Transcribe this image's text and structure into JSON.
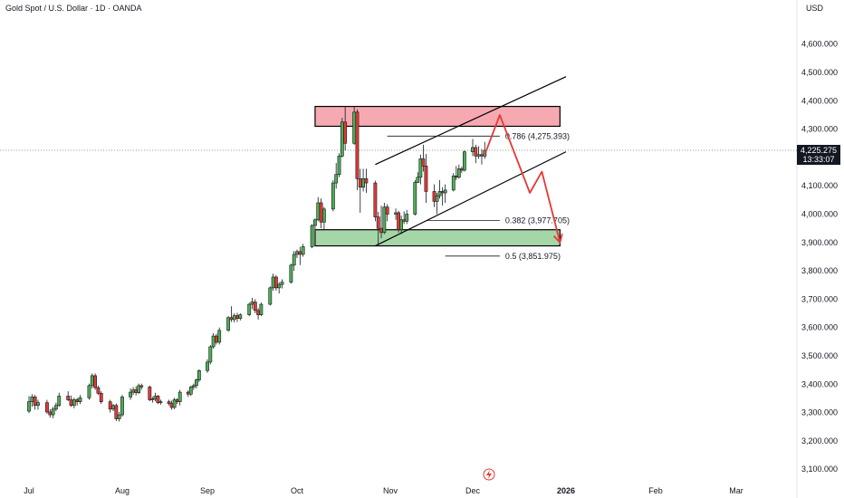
{
  "header": {
    "title": "Gold Spot / U.S. Dollar · 1D · OANDA",
    "currency": "USD"
  },
  "price_badge": {
    "price": "4,225.275",
    "countdown": "13:33:07"
  },
  "colors": {
    "up": "#4caf50",
    "down": "#e53935",
    "supply_zone": "#f7a9b1",
    "demand_zone": "#a5d6a7",
    "projection": "#e53935",
    "channel": "#000000"
  },
  "chart_data": {
    "type": "candlestick",
    "ylim": [
      3050,
      4680
    ],
    "y_ticks": [
      "4,600.000",
      "4,500.000",
      "4,400.000",
      "4,300.000",
      "4,200.000",
      "4,100.000",
      "4,000.000",
      "3,900.000",
      "3,800.000",
      "3,700.000",
      "3,600.000",
      "3,500.000",
      "3,400.000",
      "3,300.000",
      "3,200.000",
      "3,100.000"
    ],
    "y_tick_values": [
      4600,
      4500,
      4400,
      4300,
      4200,
      4100,
      4000,
      3900,
      3800,
      3700,
      3600,
      3500,
      3400,
      3300,
      3200,
      3100
    ],
    "x_ticks": [
      {
        "label": "Jul",
        "date": "2025-07-01"
      },
      {
        "label": "Aug",
        "date": "2025-08-01"
      },
      {
        "label": "Sep",
        "date": "2025-09-01"
      },
      {
        "label": "Oct",
        "date": "2025-10-01"
      },
      {
        "label": "Nov",
        "date": "2025-11-01"
      },
      {
        "label": "Dec",
        "date": "2025-12-01"
      },
      {
        "label": "2026",
        "date": "2026-01-01"
      },
      {
        "label": "Feb",
        "date": "2026-02-01"
      },
      {
        "label": "Mar",
        "date": "2026-03-01"
      }
    ],
    "candles": [
      [
        "2025-07-01",
        3305,
        3358,
        3298,
        3338
      ],
      [
        "2025-07-02",
        3338,
        3365,
        3320,
        3355
      ],
      [
        "2025-07-03",
        3355,
        3362,
        3310,
        3325
      ],
      [
        "2025-07-04",
        3325,
        3345,
        3310,
        3335
      ],
      [
        "2025-07-07",
        3335,
        3345,
        3295,
        3302
      ],
      [
        "2025-07-08",
        3302,
        3312,
        3282,
        3292
      ],
      [
        "2025-07-09",
        3292,
        3320,
        3280,
        3312
      ],
      [
        "2025-07-10",
        3312,
        3335,
        3305,
        3325
      ],
      [
        "2025-07-11",
        3325,
        3370,
        3320,
        3358
      ],
      [
        "2025-07-14",
        3358,
        3375,
        3340,
        3345
      ],
      [
        "2025-07-15",
        3345,
        3360,
        3320,
        3325
      ],
      [
        "2025-07-16",
        3325,
        3352,
        3315,
        3345
      ],
      [
        "2025-07-17",
        3345,
        3352,
        3325,
        3338
      ],
      [
        "2025-07-18",
        3338,
        3362,
        3330,
        3352
      ],
      [
        "2025-07-21",
        3352,
        3402,
        3345,
        3395
      ],
      [
        "2025-07-22",
        3395,
        3438,
        3385,
        3430
      ],
      [
        "2025-07-23",
        3430,
        3438,
        3380,
        3388
      ],
      [
        "2025-07-24",
        3388,
        3395,
        3362,
        3368
      ],
      [
        "2025-07-25",
        3368,
        3375,
        3330,
        3338
      ],
      [
        "2025-07-28",
        3338,
        3345,
        3300,
        3312
      ],
      [
        "2025-07-29",
        3312,
        3330,
        3305,
        3325
      ],
      [
        "2025-07-30",
        3325,
        3332,
        3270,
        3278
      ],
      [
        "2025-07-31",
        3278,
        3302,
        3268,
        3292
      ],
      [
        "2025-08-01",
        3292,
        3362,
        3285,
        3355
      ],
      [
        "2025-08-04",
        3355,
        3385,
        3345,
        3372
      ],
      [
        "2025-08-05",
        3372,
        3390,
        3362,
        3380
      ],
      [
        "2025-08-06",
        3380,
        3392,
        3360,
        3370
      ],
      [
        "2025-08-07",
        3370,
        3402,
        3365,
        3395
      ],
      [
        "2025-08-08",
        3395,
        3402,
        3380,
        3390
      ],
      [
        "2025-08-11",
        3390,
        3395,
        3340,
        3345
      ],
      [
        "2025-08-12",
        3345,
        3355,
        3335,
        3348
      ],
      [
        "2025-08-13",
        3348,
        3370,
        3340,
        3358
      ],
      [
        "2025-08-14",
        3358,
        3362,
        3330,
        3335
      ],
      [
        "2025-08-15",
        3335,
        3345,
        3328,
        3338
      ],
      [
        "2025-08-18",
        3338,
        3345,
        3325,
        3332
      ],
      [
        "2025-08-19",
        3332,
        3342,
        3310,
        3318
      ],
      [
        "2025-08-20",
        3318,
        3352,
        3312,
        3345
      ],
      [
        "2025-08-21",
        3345,
        3350,
        3330,
        3338
      ],
      [
        "2025-08-22",
        3338,
        3380,
        3325,
        3372
      ],
      [
        "2025-08-25",
        3372,
        3378,
        3355,
        3365
      ],
      [
        "2025-08-26",
        3365,
        3395,
        3358,
        3390
      ],
      [
        "2025-08-27",
        3390,
        3402,
        3380,
        3395
      ],
      [
        "2025-08-28",
        3395,
        3420,
        3385,
        3415
      ],
      [
        "2025-08-29",
        3415,
        3452,
        3408,
        3448
      ],
      [
        "2025-09-01",
        3448,
        3488,
        3440,
        3478
      ],
      [
        "2025-09-02",
        3478,
        3538,
        3470,
        3532
      ],
      [
        "2025-09-03",
        3532,
        3580,
        3525,
        3570
      ],
      [
        "2025-09-04",
        3570,
        3578,
        3540,
        3548
      ],
      [
        "2025-09-05",
        3548,
        3600,
        3540,
        3590
      ],
      [
        "2025-09-08",
        3590,
        3640,
        3585,
        3635
      ],
      [
        "2025-09-09",
        3635,
        3675,
        3620,
        3628
      ],
      [
        "2025-09-10",
        3628,
        3650,
        3618,
        3642
      ],
      [
        "2025-09-11",
        3642,
        3652,
        3620,
        3632
      ],
      [
        "2025-09-12",
        3632,
        3650,
        3625,
        3645
      ],
      [
        "2025-09-15",
        3645,
        3688,
        3640,
        3682
      ],
      [
        "2025-09-16",
        3682,
        3705,
        3665,
        3690
      ],
      [
        "2025-09-17",
        3690,
        3700,
        3650,
        3660
      ],
      [
        "2025-09-18",
        3660,
        3668,
        3628,
        3645
      ],
      [
        "2025-09-19",
        3645,
        3688,
        3640,
        3682
      ],
      [
        "2025-09-22",
        3682,
        3745,
        3678,
        3740
      ],
      [
        "2025-09-23",
        3740,
        3790,
        3730,
        3778
      ],
      [
        "2025-09-24",
        3778,
        3785,
        3730,
        3740
      ],
      [
        "2025-09-25",
        3740,
        3760,
        3720,
        3752
      ],
      [
        "2025-09-26",
        3752,
        3770,
        3738,
        3760
      ],
      [
        "2025-09-29",
        3760,
        3825,
        3755,
        3820
      ],
      [
        "2025-09-30",
        3820,
        3870,
        3800,
        3858
      ],
      [
        "2025-10-01",
        3858,
        3875,
        3845,
        3868
      ],
      [
        "2025-10-02",
        3868,
        3885,
        3820,
        3858
      ],
      [
        "2025-10-03",
        3858,
        3895,
        3850,
        3885
      ],
      [
        "2025-10-06",
        3885,
        3965,
        3880,
        3960
      ],
      [
        "2025-10-07",
        3960,
        3985,
        3935,
        3980
      ],
      [
        "2025-10-08",
        3980,
        4060,
        3975,
        4040
      ],
      [
        "2025-10-09",
        4040,
        4055,
        3950,
        3972
      ],
      [
        "2025-10-10",
        3972,
        4025,
        3945,
        4018
      ],
      [
        "2025-10-13",
        4018,
        4120,
        4010,
        4110
      ],
      [
        "2025-10-14",
        4110,
        4180,
        4090,
        4140
      ],
      [
        "2025-10-15",
        4140,
        4215,
        4130,
        4205
      ],
      [
        "2025-10-16",
        4205,
        4340,
        4200,
        4325
      ],
      [
        "2025-10-17",
        4325,
        4380,
        4225,
        4250
      ],
      [
        "2025-10-20",
        4250,
        4380,
        4245,
        4360
      ],
      [
        "2025-10-21",
        4360,
        4370,
        4085,
        4125
      ],
      [
        "2025-10-22",
        4125,
        4160,
        4005,
        4095
      ],
      [
        "2025-10-23",
        4095,
        4160,
        4080,
        4125
      ],
      [
        "2025-10-24",
        4125,
        4160,
        4075,
        4110
      ],
      [
        "2025-10-27",
        4110,
        4118,
        3975,
        3990
      ],
      [
        "2025-10-28",
        3990,
        4008,
        3895,
        3950
      ],
      [
        "2025-10-29",
        3950,
        4030,
        3915,
        3935
      ],
      [
        "2025-10-30",
        3935,
        4040,
        3930,
        4025
      ],
      [
        "2025-10-31",
        4025,
        4035,
        3975,
        4000
      ],
      [
        "2025-11-03",
        4000,
        4020,
        3980,
        4005
      ],
      [
        "2025-11-04",
        4005,
        4012,
        3935,
        3945
      ],
      [
        "2025-11-05",
        3945,
        3995,
        3930,
        3980
      ],
      [
        "2025-11-06",
        3980,
        4010,
        3965,
        3975
      ],
      [
        "2025-11-07",
        3975,
        4015,
        3965,
        4000
      ],
      [
        "2025-11-10",
        4000,
        4120,
        3995,
        4112
      ],
      [
        "2025-11-11",
        4112,
        4148,
        4110,
        4130
      ],
      [
        "2025-11-12",
        4130,
        4210,
        4105,
        4195
      ],
      [
        "2025-11-13",
        4195,
        4245,
        4150,
        4170
      ],
      [
        "2025-11-14",
        4170,
        4212,
        4040,
        4080
      ],
      [
        "2025-11-17",
        4080,
        4105,
        4025,
        4045
      ],
      [
        "2025-11-18",
        4045,
        4075,
        4000,
        4065
      ],
      [
        "2025-11-19",
        4065,
        4120,
        4055,
        4080
      ],
      [
        "2025-11-20",
        4080,
        4095,
        4030,
        4075
      ],
      [
        "2025-11-21",
        4075,
        4105,
        4040,
        4085
      ],
      [
        "2025-11-24",
        4085,
        4145,
        4080,
        4135
      ],
      [
        "2025-11-25",
        4135,
        4170,
        4120,
        4130
      ],
      [
        "2025-11-26",
        4130,
        4175,
        4125,
        4160
      ],
      [
        "2025-11-27",
        4160,
        4168,
        4145,
        4155
      ],
      [
        "2025-11-28",
        4155,
        4225,
        4150,
        4220
      ],
      [
        "2025-12-01",
        4220,
        4265,
        4205,
        4235
      ],
      [
        "2025-12-02",
        4235,
        4245,
        4180,
        4205
      ],
      [
        "2025-12-03",
        4205,
        4240,
        4195,
        4210
      ],
      [
        "2025-12-04",
        4210,
        4230,
        4175,
        4205
      ],
      [
        "2025-12-05",
        4205,
        4255,
        4195,
        4225
      ]
    ],
    "zones": [
      {
        "name": "supply",
        "x0": "2025-10-07",
        "x1": "2025-12-30",
        "y0": 4310,
        "y1": 4380
      },
      {
        "name": "demand",
        "x0": "2025-10-07",
        "x1": "2025-12-30",
        "y0": 3888,
        "y1": 3945
      }
    ],
    "channel": {
      "lower": {
        "x0": "2025-10-27",
        "y0": 3888,
        "x1": "2026-01-01",
        "y1": 4220
      },
      "upper": {
        "x0": "2025-10-27",
        "y0": 4175,
        "x1": "2026-01-01",
        "y1": 4485
      }
    },
    "fib_levels": [
      {
        "label": "0.786 (4,275.393)",
        "value": 4275.393,
        "x0": "2025-10-31",
        "x1": "2025-12-10"
      },
      {
        "label": "0.382 (3,977.705)",
        "value": 3977.705,
        "x0": "2025-11-14",
        "x1": "2025-12-10"
      },
      {
        "label": "0.5 (3,851.975)",
        "value": 3851.975,
        "x0": "2025-11-21",
        "x1": "2025-12-10"
      }
    ],
    "projection": [
      {
        "date": "2025-12-05",
        "price": 4210
      },
      {
        "date": "2025-12-10",
        "price": 4350
      },
      {
        "date": "2025-12-20",
        "price": 4075
      },
      {
        "date": "2025-12-24",
        "price": 4150
      },
      {
        "date": "2025-12-30",
        "price": 3900
      }
    ],
    "current_price": 4225.275
  }
}
